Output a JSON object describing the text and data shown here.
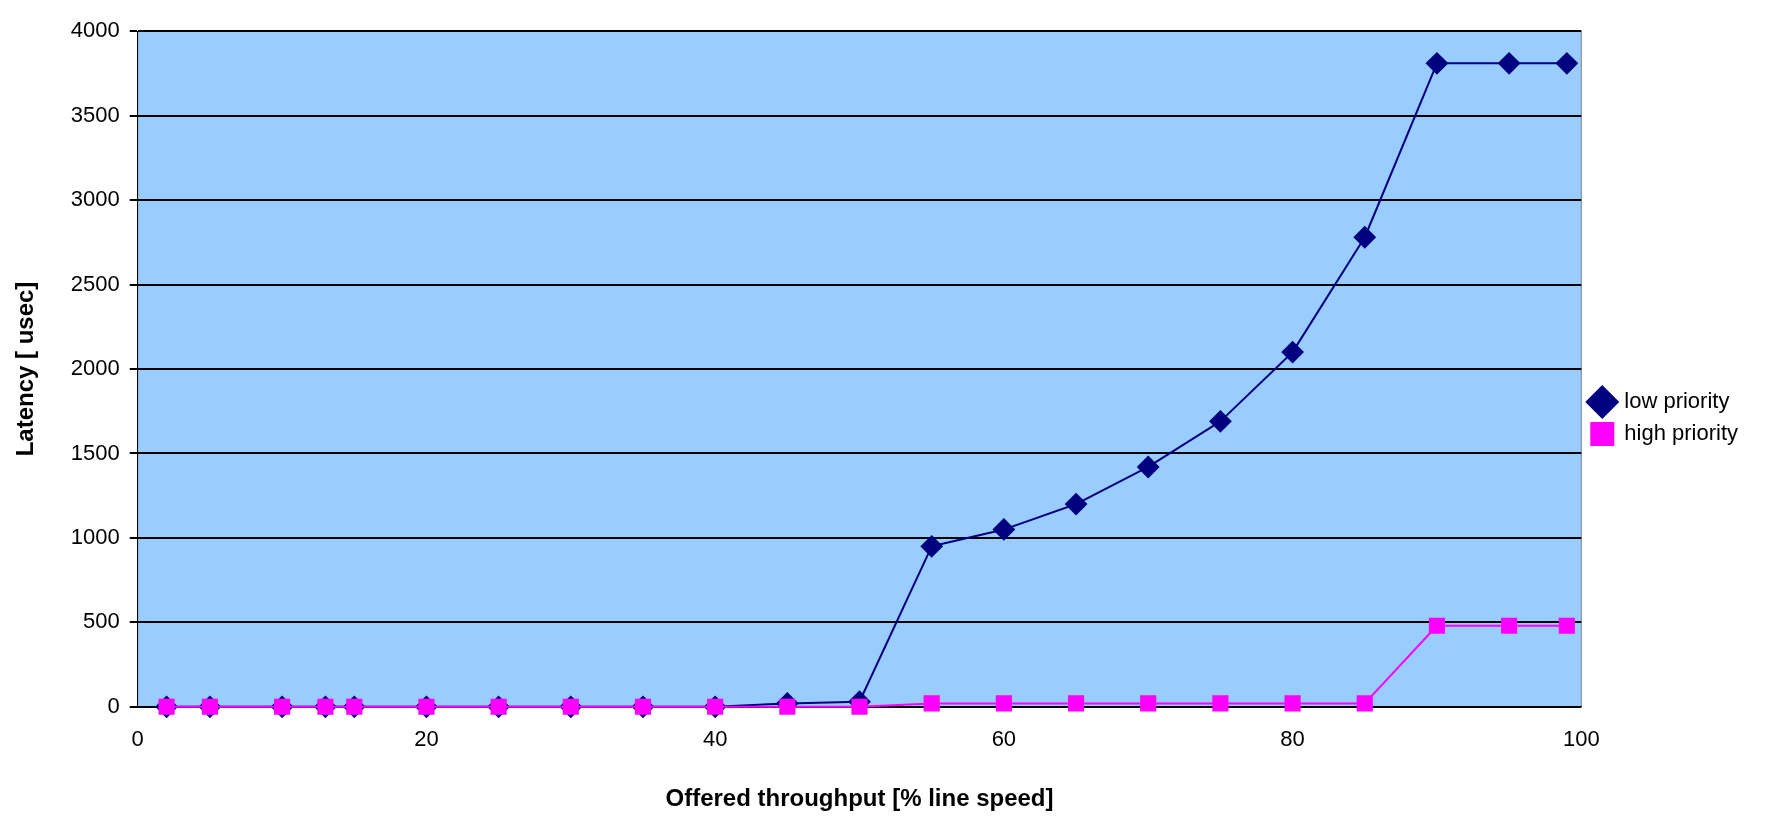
{
  "chart_data": {
    "type": "line",
    "xlabel": "Offered throughput [% line speed]",
    "ylabel": "Latency [ usec]",
    "x": [
      2,
      5,
      10,
      13,
      15,
      20,
      25,
      30,
      35,
      40,
      45,
      50,
      55,
      60,
      65,
      70,
      75,
      80,
      85,
      90,
      95,
      99
    ],
    "series": [
      {
        "name": "low priority",
        "color": "#000080",
        "marker": "diamond",
        "values": [
          0,
          0,
          0,
          0,
          0,
          0,
          0,
          0,
          0,
          0,
          20,
          30,
          950,
          1050,
          1200,
          1420,
          1690,
          2100,
          2780,
          3810,
          3810,
          3810
        ]
      },
      {
        "name": "high priority",
        "color": "#ff00ff",
        "marker": "square",
        "values": [
          0,
          0,
          0,
          0,
          0,
          0,
          0,
          0,
          0,
          0,
          0,
          0,
          20,
          20,
          20,
          20,
          20,
          20,
          20,
          480,
          480,
          480
        ]
      }
    ],
    "xlim": [
      0,
      100
    ],
    "xticks": [
      0,
      20,
      40,
      60,
      80,
      100
    ],
    "ylim": [
      0,
      4000
    ],
    "yticks": [
      0,
      500,
      1000,
      1500,
      2000,
      2500,
      3000,
      3500,
      4000
    ],
    "grid": "y",
    "legend": "right",
    "line_style": "solid"
  }
}
